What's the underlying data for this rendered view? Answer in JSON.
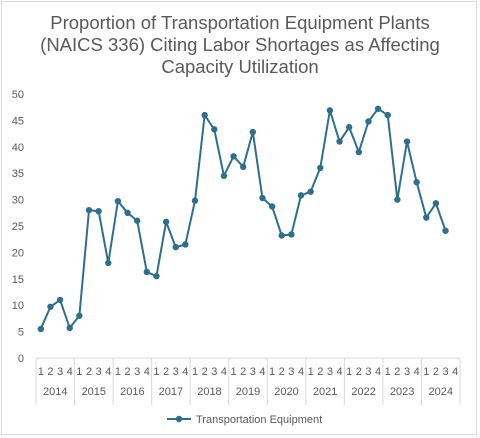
{
  "chart_data": {
    "type": "line",
    "title_lines": [
      "Proportion of Transportation Equipment Plants",
      "(NAICS 336) Citing Labor Shortages as Affecting",
      "Capacity Utilization"
    ],
    "ylim": [
      0,
      50
    ],
    "y_ticks": [
      0,
      5,
      10,
      15,
      20,
      25,
      30,
      35,
      40,
      45,
      50
    ],
    "quarter_labels": [
      "1",
      "2",
      "3",
      "4"
    ],
    "years": [
      "2014",
      "2015",
      "2016",
      "2017",
      "2018",
      "2019",
      "2020",
      "2021",
      "2022",
      "2023",
      "2024"
    ],
    "grid": false,
    "legend_position": "bottom",
    "series": [
      {
        "name": "Transportation Equipment",
        "color": "#2e6f8e",
        "values": [
          5.5,
          9.7,
          11,
          5.7,
          8,
          28,
          27.8,
          18,
          29.7,
          27.5,
          26,
          16.3,
          15.5,
          25.8,
          21,
          21.5,
          29.8,
          46,
          43.3,
          34.5,
          38.2,
          36.2,
          42.8,
          30.3,
          28.7,
          23.2,
          23.4,
          30.8,
          31.5,
          36,
          46.9,
          41,
          43.7,
          39,
          44.8,
          47.2,
          46,
          30,
          41,
          33.3,
          26.6,
          29.3,
          24.1
        ]
      }
    ]
  }
}
